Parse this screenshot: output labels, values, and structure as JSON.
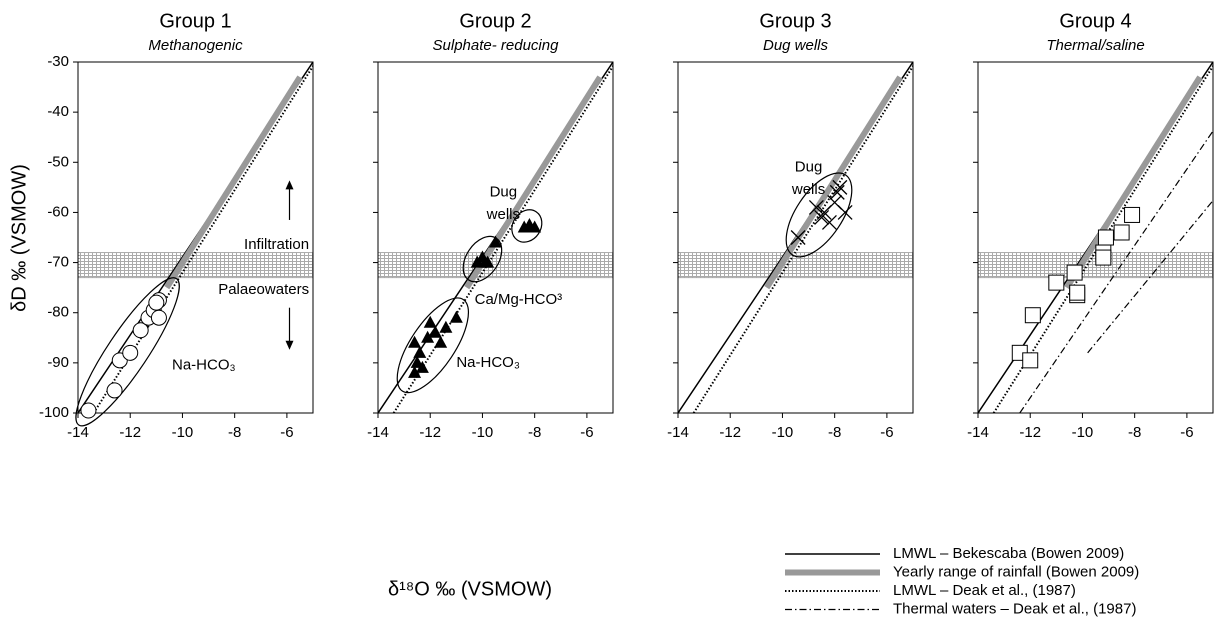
{
  "xlabel": "δ¹⁸O ‰ (VSMOW)",
  "ylabel": "δD ‰ (VSMOW)",
  "chart_data": [
    {
      "type": "scatter",
      "title": "Group 1",
      "subtitle": "Methanogenic",
      "marker": "circle",
      "x": [
        -13.6,
        -12.6,
        -12.4,
        -12.0,
        -11.6,
        -11.3,
        -11.1,
        -10.9,
        -10.9,
        -11.0
      ],
      "y": [
        -99.5,
        -95.5,
        -89.5,
        -88,
        -83.5,
        -81,
        -79.5,
        -81,
        -77.5,
        -78
      ],
      "xlim": [
        -14,
        -5
      ],
      "ylim": [
        -100,
        -30
      ],
      "xticks": [
        -14,
        -12,
        -10,
        -8,
        -6
      ],
      "yticks": [
        -100,
        -90,
        -80,
        -70,
        -60,
        -50,
        -40,
        -30
      ],
      "show_yticklabels": true,
      "band": [
        -73,
        -68
      ],
      "annotations": [
        {
          "lines": [
            "Infiltration"
          ]
        },
        {
          "lines": [
            "Palaeowaters"
          ]
        },
        {
          "lines": [
            "Na-HCO₃"
          ]
        }
      ]
    },
    {
      "type": "scatter",
      "title": "Group 2",
      "subtitle": "Sulphate- reducing",
      "marker": "triangle",
      "x": [
        -12.6,
        -12.5,
        -12.4,
        -12.6,
        -12.3,
        -12.1,
        -12.0,
        -11.8,
        -11.6,
        -11.4,
        -11.0,
        -10.2,
        -10.0,
        -9.9,
        -9.8,
        -9.5,
        -8.4,
        -8.2,
        -8.0
      ],
      "y": [
        -92,
        -90,
        -88,
        -86,
        -91,
        -85,
        -82,
        -84,
        -86,
        -83,
        -81,
        -70,
        -69,
        -70,
        -70,
        -66,
        -63,
        -62.5,
        -63
      ],
      "xlim": [
        -14,
        -5
      ],
      "ylim": [
        -100,
        -30
      ],
      "xticks": [
        -14,
        -12,
        -10,
        -8,
        -6
      ],
      "yticks": [
        -100,
        -90,
        -80,
        -70,
        -60,
        -50,
        -40,
        -30
      ],
      "show_yticklabels": false,
      "band": [
        -73,
        -68
      ],
      "annotations": [
        {
          "lines": [
            "Dug",
            "wells"
          ]
        },
        {
          "lines": [
            "Ca/Mg-HCO³"
          ]
        },
        {
          "lines": [
            "Na-HCO₃"
          ]
        }
      ]
    },
    {
      "type": "scatter",
      "title": "Group 3",
      "subtitle": "Dug wells",
      "marker": "cross",
      "x": [
        -9.4,
        -8.7,
        -8.5,
        -8.4,
        -8.2,
        -8.0,
        -7.9,
        -7.8,
        -7.6
      ],
      "y": [
        -65,
        -59,
        -61,
        -60,
        -62,
        -58,
        -56,
        -55,
        -60
      ],
      "xlim": [
        -14,
        -5
      ],
      "ylim": [
        -100,
        -30
      ],
      "xticks": [
        -14,
        -12,
        -10,
        -8,
        -6
      ],
      "yticks": [
        -100,
        -90,
        -80,
        -70,
        -60,
        -50,
        -40,
        -30
      ],
      "show_yticklabels": false,
      "band": [
        -73,
        -68
      ],
      "annotations": [
        {
          "lines": [
            "Dug",
            "wells"
          ]
        }
      ]
    },
    {
      "type": "scatter",
      "title": "Group 4",
      "subtitle": "Thermal/saline",
      "marker": "square",
      "x": [
        -12.4,
        -12.0,
        -11.9,
        -11.0,
        -10.3,
        -10.2,
        -10.2,
        -9.2,
        -9.2,
        -9.1,
        -8.5,
        -8.1
      ],
      "y": [
        -88,
        -89.5,
        -80.5,
        -74,
        -72,
        -76.5,
        -76,
        -68,
        -69,
        -65,
        -64,
        -60.5
      ],
      "xlim": [
        -14,
        -5
      ],
      "ylim": [
        -100,
        -30
      ],
      "xticks": [
        -14,
        -12,
        -10,
        -8,
        -6
      ],
      "yticks": [
        -100,
        -90,
        -80,
        -70,
        -60,
        -50,
        -40,
        -30
      ],
      "show_yticklabels": false,
      "band": [
        -73,
        -68
      ],
      "annotations": []
    }
  ],
  "reference_lines": [
    {
      "name": "LMWL – Bekescaba (Bowen 2009)",
      "color": "#000000",
      "style": "solid",
      "x": [
        -14,
        -5
      ],
      "y": [
        -100,
        -30
      ]
    },
    {
      "name": "Yearly range of rainfall (Bowen 2009)",
      "color": "#999999",
      "style": "thick",
      "x": [
        -10.6,
        -5.5
      ],
      "y": [
        -75,
        -33
      ]
    },
    {
      "name": "LMWL – Deak et al., (1987)",
      "color": "#000000",
      "style": "dotted",
      "x": [
        -13.4,
        -4.9
      ],
      "y": [
        -100,
        -30
      ]
    },
    {
      "name": "Thermal waters – Deak et al., (1987)",
      "color": "#000000",
      "style": "dashdot",
      "panel": 3,
      "x": [
        -12.4,
        -4.9,
        null,
        -9.8,
        -4.9
      ],
      "y": [
        -100,
        -43,
        null,
        -88,
        -57
      ]
    }
  ]
}
